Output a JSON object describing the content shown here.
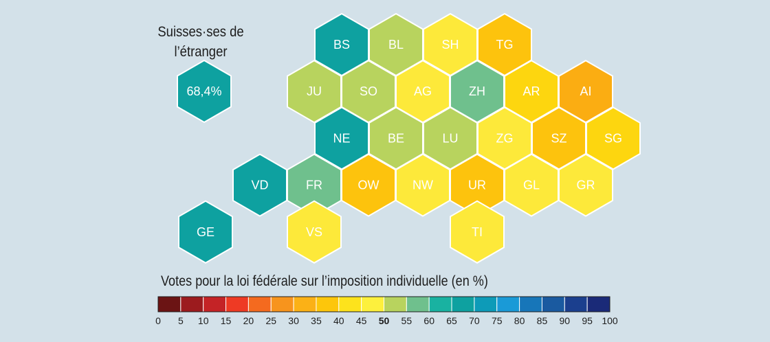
{
  "abroad": {
    "title_line1": "Suisses·ses de",
    "title_line2": "l’étranger",
    "value": "68,4%",
    "color": "#0ea1a0"
  },
  "legend": {
    "title": "Votes pour la loi fédérale sur l’imposition individuelle (en %)",
    "ticks": [
      "0",
      "5",
      "10",
      "15",
      "20",
      "25",
      "30",
      "35",
      "40",
      "45",
      "50",
      "55",
      "60",
      "65",
      "70",
      "75",
      "80",
      "85",
      "90",
      "95",
      "100"
    ],
    "highlight_tick": "50",
    "colors": [
      "#6b1414",
      "#9c1b1e",
      "#c42326",
      "#ee3a24",
      "#f46a1f",
      "#f7941d",
      "#fbb116",
      "#fdc60b",
      "#fde31c",
      "#fdf03d",
      "#b8d35e",
      "#6fc08d",
      "#19b2a1",
      "#0ea1a0",
      "#0d9bb8",
      "#1a9ad7",
      "#1776b9",
      "#1a5aa0",
      "#1b3f8e",
      "#1a2a78"
    ]
  },
  "cantons": [
    {
      "code": "BS",
      "color": "#0ea1a0",
      "text": "#ffffff",
      "row": 0,
      "col": 2
    },
    {
      "code": "BL",
      "color": "#b8d35e",
      "text": "#ffffff",
      "row": 0,
      "col": 3
    },
    {
      "code": "SH",
      "color": "#fde93a",
      "text": "#ffffff",
      "row": 0,
      "col": 4
    },
    {
      "code": "TG",
      "color": "#fdc30d",
      "text": "#ffffff",
      "row": 0,
      "col": 5
    },
    {
      "code": "JU",
      "color": "#b8d35e",
      "text": "#ffffff",
      "row": 1,
      "col": 1
    },
    {
      "code": "SO",
      "color": "#b8d35e",
      "text": "#ffffff",
      "row": 1,
      "col": 2
    },
    {
      "code": "AG",
      "color": "#fde93a",
      "text": "#ffffff",
      "row": 1,
      "col": 3
    },
    {
      "code": "ZH",
      "color": "#6fc08d",
      "text": "#ffffff",
      "row": 1,
      "col": 4
    },
    {
      "code": "AR",
      "color": "#fdd60f",
      "text": "#ffffff",
      "row": 1,
      "col": 5
    },
    {
      "code": "AI",
      "color": "#fbad12",
      "text": "#ffffff",
      "row": 1,
      "col": 6
    },
    {
      "code": "NE",
      "color": "#0ea1a0",
      "text": "#ffffff",
      "row": 2,
      "col": 1
    },
    {
      "code": "BE",
      "color": "#b8d35e",
      "text": "#ffffff",
      "row": 2,
      "col": 2
    },
    {
      "code": "LU",
      "color": "#b8d35e",
      "text": "#ffffff",
      "row": 2,
      "col": 3
    },
    {
      "code": "ZG",
      "color": "#fde93a",
      "text": "#ffffff",
      "row": 2,
      "col": 4
    },
    {
      "code": "SZ",
      "color": "#fdc30d",
      "text": "#ffffff",
      "row": 2,
      "col": 5
    },
    {
      "code": "SG",
      "color": "#fdd60f",
      "text": "#ffffff",
      "row": 2,
      "col": 6
    },
    {
      "code": "VD",
      "color": "#0ea1a0",
      "text": "#ffffff",
      "row": 3,
      "col": 0
    },
    {
      "code": "FR",
      "color": "#6fc08d",
      "text": "#ffffff",
      "row": 3,
      "col": 1
    },
    {
      "code": "OW",
      "color": "#fdc30d",
      "text": "#ffffff",
      "row": 3,
      "col": 2
    },
    {
      "code": "NW",
      "color": "#fde93a",
      "text": "#ffffff",
      "row": 3,
      "col": 3
    },
    {
      "code": "UR",
      "color": "#fdc30d",
      "text": "#ffffff",
      "row": 3,
      "col": 4
    },
    {
      "code": "GL",
      "color": "#fde93a",
      "text": "#ffffff",
      "row": 3,
      "col": 5
    },
    {
      "code": "GR",
      "color": "#fde93a",
      "text": "#ffffff",
      "row": 3,
      "col": 6
    },
    {
      "code": "GE",
      "color": "#0ea1a0",
      "text": "#ffffff",
      "row": 4,
      "col": 0
    },
    {
      "code": "VS",
      "color": "#fde93a",
      "text": "#ffffff",
      "row": 4,
      "col": 2
    },
    {
      "code": "TI",
      "color": "#fde93a",
      "text": "#ffffff",
      "row": 4,
      "col": 5
    }
  ]
}
